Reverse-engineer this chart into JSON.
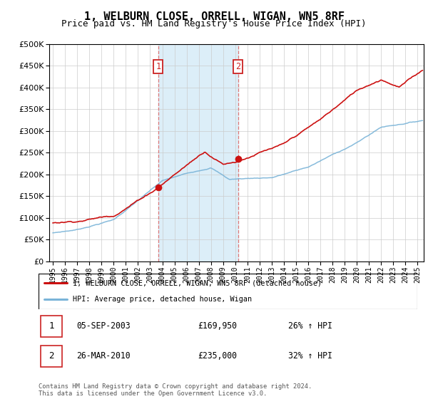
{
  "title": "1, WELBURN CLOSE, ORRELL, WIGAN, WN5 8RF",
  "subtitle": "Price paid vs. HM Land Registry's House Price Index (HPI)",
  "title_fontsize": 11,
  "subtitle_fontsize": 9,
  "sale1_date": 2003.67,
  "sale1_price": 169950,
  "sale2_date": 2010.23,
  "sale2_price": 235000,
  "hpi_color": "#7ab4d8",
  "price_color": "#cc1111",
  "vline_color": "#dd7777",
  "highlight_bg": "#dceef8",
  "legend_label_price": "1, WELBURN CLOSE, ORRELL, WIGAN, WN5 8RF (detached house)",
  "legend_label_hpi": "HPI: Average price, detached house, Wigan",
  "footer": "Contains HM Land Registry data © Crown copyright and database right 2024.\nThis data is licensed under the Open Government Licence v3.0.",
  "table_row1": [
    "1",
    "05-SEP-2003",
    "£169,950",
    "26% ↑ HPI"
  ],
  "table_row2": [
    "2",
    "26-MAR-2010",
    "£235,000",
    "32% ↑ HPI"
  ],
  "ylim": [
    0,
    500000
  ],
  "yticks": [
    0,
    50000,
    100000,
    150000,
    200000,
    250000,
    300000,
    350000,
    400000,
    450000,
    500000
  ],
  "xlim_start": 1994.7,
  "xlim_end": 2025.5,
  "xticks": [
    1995,
    1996,
    1997,
    1998,
    1999,
    2000,
    2001,
    2002,
    2003,
    2004,
    2005,
    2006,
    2007,
    2008,
    2009,
    2010,
    2011,
    2012,
    2013,
    2014,
    2015,
    2016,
    2017,
    2018,
    2019,
    2020,
    2021,
    2022,
    2023,
    2024,
    2025
  ]
}
